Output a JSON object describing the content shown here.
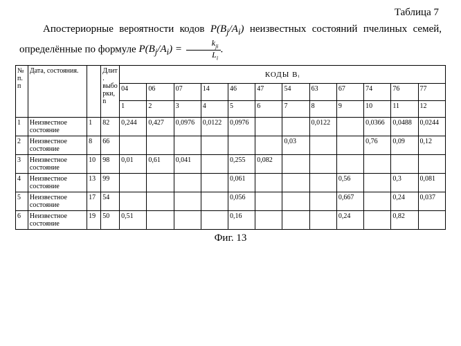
{
  "table_label": "Таблица 7",
  "caption_pre": "Апостериорные вероятности кодов ",
  "caption_formula1_html": "<span class=\"it\">P(B<sub>j</sub>/A<sub>i</sub>)</span>",
  "caption_mid": "  неизвестных состояний пчелиных семей, определённые по формуле ",
  "caption_formula2_html": "<span class=\"it\">P(B<sub>j</sub>/A<sub>i</sub>)</span> = <span class=\"frac\"><span class=\"top\">k<sub>ji</sub></span><span class=\"bot\">L<sub>i</sub></span></span>",
  "caption_after": ".",
  "head": {
    "np": "№ п.п",
    "date": "Дата, состояния.",
    "blank": "",
    "dlit": "Длит. выборки, n",
    "codes": "КОДЫ Bᵢ",
    "code_cols": [
      "04",
      "06",
      "07",
      "14",
      "46",
      "47",
      "54",
      "63",
      "67",
      "74",
      "76",
      "77"
    ],
    "idx_cols": [
      "1",
      "2",
      "3",
      "4",
      "5",
      "6",
      "7",
      "8",
      "9",
      "10",
      "11",
      "12"
    ]
  },
  "rows": [
    {
      "n": "1",
      "state": "Неизвестное состояние",
      "num": "1",
      "len": "82",
      "v": [
        "0,244",
        "0,427",
        "0,0976",
        "0,0122",
        "0,0976",
        "",
        "",
        "0,0122",
        "",
        "0,0366",
        "0,0488",
        "0,0244"
      ]
    },
    {
      "n": "2",
      "state": "Неизвестное состояние",
      "num": "8",
      "len": "66",
      "v": [
        "",
        "",
        "",
        "",
        "",
        "",
        "0,03",
        "",
        "",
        "0,76",
        "0,09",
        "0,12"
      ]
    },
    {
      "n": "3",
      "state": "Неизвестное состояние",
      "num": "10",
      "len": "98",
      "v": [
        "0,01",
        "0,61",
        "0,041",
        "",
        "0,255",
        "0,082",
        "",
        "",
        "",
        "",
        "",
        ""
      ]
    },
    {
      "n": "4",
      "state": "Неизвестное состояние",
      "num": "13",
      "len": "99",
      "v": [
        "",
        "",
        "",
        "",
        "0,061",
        "",
        "",
        "",
        "0,56",
        "",
        "0,3",
        "0,081"
      ]
    },
    {
      "n": "5",
      "state": "Неизвестное состояние",
      "num": "17",
      "len": "54",
      "v": [
        "",
        "",
        "",
        "",
        "0,056",
        "",
        "",
        "",
        "0,667",
        "",
        "0,24",
        "0,037"
      ]
    },
    {
      "n": "6",
      "state": "Неизвестное состояние",
      "num": "19",
      "len": "50",
      "v": [
        "0,51",
        "",
        "",
        "",
        "0,16",
        "",
        "",
        "",
        "0,24",
        "",
        "0,82",
        ""
      ]
    }
  ],
  "figure": "Фиг. 13"
}
